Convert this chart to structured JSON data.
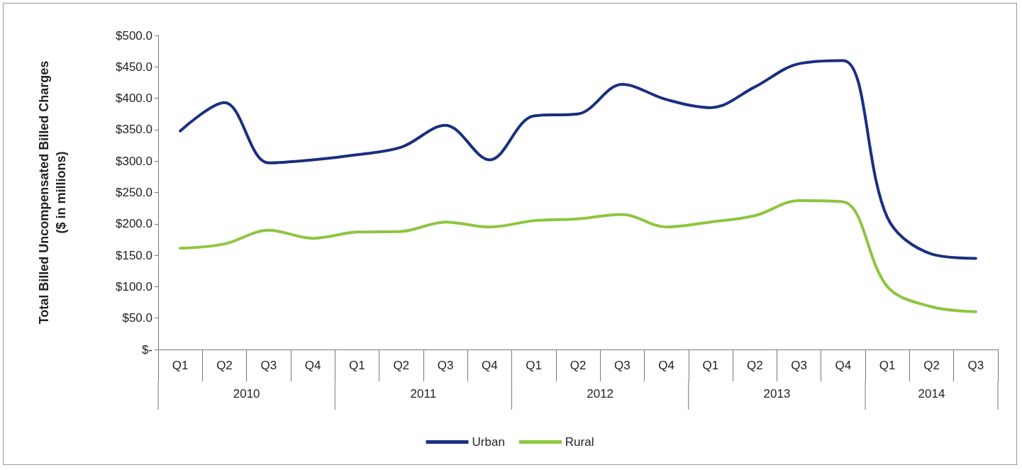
{
  "chart_data": {
    "type": "line",
    "ylabel": "Total Billed Uncompensated Billed Charges\n($ in millions)",
    "categories": [
      "Q1",
      "Q2",
      "Q3",
      "Q4",
      "Q1",
      "Q2",
      "Q3",
      "Q4",
      "Q1",
      "Q2",
      "Q3",
      "Q4",
      "Q1",
      "Q2",
      "Q3",
      "Q4",
      "Q1",
      "Q2",
      "Q3"
    ],
    "annotations": [
      "2010",
      "2011",
      "2012",
      "2013",
      "2014"
    ],
    "series": [
      {
        "name": "Urban",
        "color": "#1a2f80",
        "values": [
          348,
          393,
          297,
          302,
          310,
          322,
          357,
          302,
          372,
          375,
          422,
          398,
          385,
          418,
          455,
          460,
          210,
          152,
          145
        ]
      },
      {
        "name": "Rural",
        "color": "#8dc63f",
        "values": [
          161,
          168,
          190,
          177,
          187,
          188,
          203,
          195,
          205,
          208,
          215,
          195,
          203,
          213,
          237,
          235,
          100,
          68,
          60
        ]
      }
    ],
    "ylim": [
      0,
      500
    ],
    "yticks": [
      {
        "value": 0,
        "label": "$-"
      },
      {
        "value": 50,
        "label": "$50.0"
      },
      {
        "value": 100,
        "label": "$100.0"
      },
      {
        "value": 150,
        "label": "$150.0"
      },
      {
        "value": 200,
        "label": "$200.0"
      },
      {
        "value": 250,
        "label": "$250.0"
      },
      {
        "value": 300,
        "label": "$300.0"
      },
      {
        "value": 350,
        "label": "$350.0"
      },
      {
        "value": 400,
        "label": "$400.0"
      },
      {
        "value": 450,
        "label": "$450.0"
      },
      {
        "value": 500,
        "label": "$500.0"
      }
    ],
    "grid": false,
    "legend": "bottom",
    "marker": "none",
    "line_style": "solid"
  }
}
